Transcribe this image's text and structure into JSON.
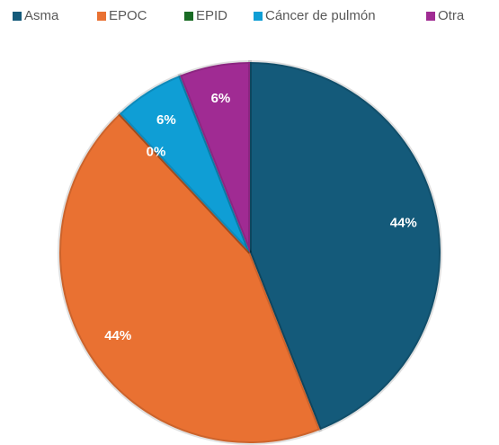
{
  "chart_data": {
    "type": "pie",
    "categories": [
      "Asma",
      "EPOC",
      "EPID",
      "Cáncer de pulmón",
      "Otra"
    ],
    "values": [
      44,
      44,
      0,
      6,
      6
    ],
    "value_labels": [
      "44%",
      "44%",
      "0%",
      "6%",
      "6%"
    ],
    "colors": [
      "#145a7a",
      "#e97132",
      "#196b24",
      "#0f9ed5",
      "#a02b93"
    ],
    "legend": "top"
  }
}
